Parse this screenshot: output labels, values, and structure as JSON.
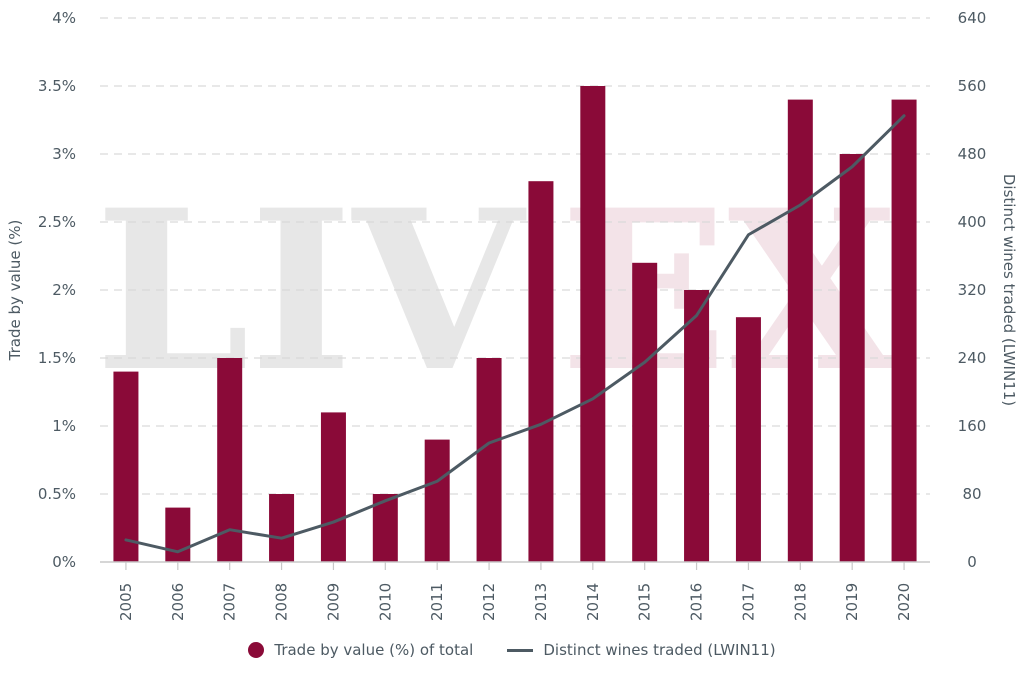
{
  "chart_data": {
    "type": "bar",
    "watermark": "LIV-EX",
    "categories": [
      "2005",
      "2006",
      "2007",
      "2008",
      "2009",
      "2010",
      "2011",
      "2012",
      "2013",
      "2014",
      "2015",
      "2016",
      "2017",
      "2018",
      "2019",
      "2020"
    ],
    "series": [
      {
        "name": "Trade by value (%) of total",
        "type": "bar",
        "axis": "left",
        "color": "#8a0a38",
        "values": [
          1.4,
          0.4,
          1.5,
          0.5,
          1.1,
          0.5,
          0.9,
          1.5,
          2.8,
          3.5,
          2.2,
          2.0,
          1.8,
          3.4,
          3.0,
          3.4
        ]
      },
      {
        "name": "Distinct wines traded (LWIN11)",
        "type": "line",
        "axis": "right",
        "color": "#4d5a63",
        "values": [
          26,
          12,
          38,
          28,
          47,
          72,
          95,
          140,
          162,
          192,
          235,
          290,
          385,
          420,
          465,
          525
        ]
      }
    ],
    "y_left": {
      "label": "Trade by value (%)",
      "ylim": [
        0,
        4
      ],
      "ticks": [
        0,
        0.5,
        1,
        1.5,
        2,
        2.5,
        3,
        3.5,
        4
      ],
      "tick_labels": [
        "0%",
        "0.5%",
        "1%",
        "1.5%",
        "2%",
        "2.5%",
        "3%",
        "3.5%",
        "4%"
      ]
    },
    "y_right": {
      "label": "Distinct wines traded (LWIN11)",
      "ylim": [
        0,
        640
      ],
      "ticks": [
        0,
        80,
        160,
        240,
        320,
        400,
        480,
        560,
        640
      ],
      "tick_labels": [
        "0",
        "80",
        "160",
        "240",
        "320",
        "400",
        "480",
        "560",
        "640"
      ]
    },
    "grid": true,
    "legend_position": "bottom"
  },
  "legend": {
    "bar_label": "Trade by value (%) of total",
    "line_label": "Distinct wines traded (LWIN11)"
  }
}
